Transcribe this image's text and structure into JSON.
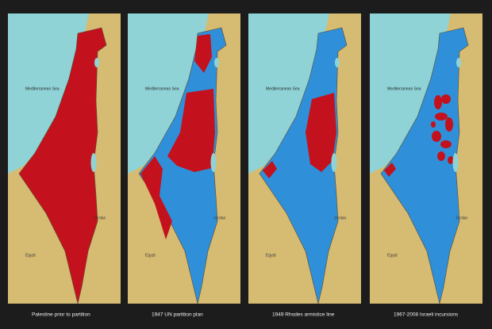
{
  "panels": [
    {
      "caption": "Palestine prior to partition",
      "sea": "Mediterranean Sea",
      "west": "Egypt",
      "east": "Jordan"
    },
    {
      "caption": "1947 UN partition plan",
      "sea": "Mediterranean Sea",
      "west": "Egypt",
      "east": "Jordan"
    },
    {
      "caption": "1949 Rhodes armistice line",
      "sea": "Mediterranean Sea",
      "west": "Egypt",
      "east": "Jordan"
    },
    {
      "caption": "1967-2008 Israeli incursions",
      "sea": "Mediterranean Sea",
      "west": "Egypt",
      "east": "Jordan"
    }
  ]
}
